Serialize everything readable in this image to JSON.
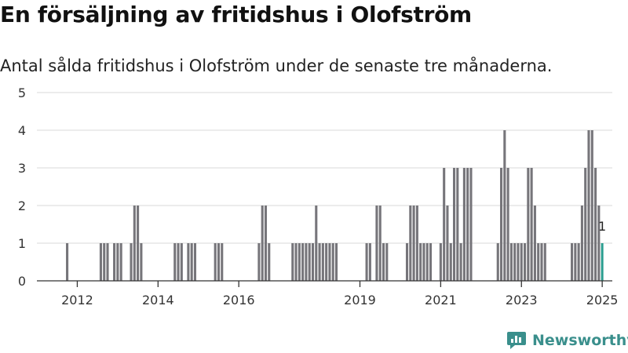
{
  "title": "En försäljning av fritidshus i Olofström",
  "subtitle": "Antal sålda fritidshus i Olofström under de senaste tre månaderna.",
  "brand": {
    "name": "Newsworthy",
    "icon": "newsworthy-logo-icon"
  },
  "colors": {
    "bar": "#76757a",
    "highlight": "#2a9d8f",
    "grid": "#d9d9d9",
    "axis": "#333333"
  },
  "chart_data": {
    "type": "bar",
    "title": "En försäljning av fritidshus i Olofström",
    "subtitle": "Antal sålda fritidshus i Olofström under de senaste tre månaderna.",
    "xlabel": "",
    "ylabel": "",
    "ylim": [
      0,
      5
    ],
    "yticks": [
      0,
      1,
      2,
      3,
      4,
      5
    ],
    "xlim": [
      "2011-01",
      "2025-04"
    ],
    "xticks": [
      "2012",
      "2014",
      "2016",
      "2019",
      "2021",
      "2023",
      "2025"
    ],
    "grid": true,
    "legend": "none",
    "highlight": {
      "x": "2025-01",
      "value": 1,
      "label": "1"
    },
    "series": [
      {
        "x": [
          "2011-10",
          "2012-08",
          "2012-09",
          "2012-10",
          "2012-12",
          "2013-01",
          "2013-02",
          "2013-05",
          "2013-06",
          "2013-07",
          "2013-08",
          "2014-06",
          "2014-07",
          "2014-08",
          "2014-10",
          "2014-11",
          "2014-12",
          "2015-06",
          "2015-07",
          "2015-08",
          "2016-07",
          "2016-08",
          "2016-09",
          "2016-10",
          "2017-05",
          "2017-06",
          "2017-07",
          "2017-08",
          "2017-09",
          "2017-10",
          "2017-11",
          "2017-12",
          "2018-01",
          "2018-02",
          "2018-03",
          "2018-04",
          "2018-05",
          "2018-06",
          "2019-03",
          "2019-04",
          "2019-06",
          "2019-07",
          "2019-08",
          "2019-09",
          "2020-03",
          "2020-04",
          "2020-05",
          "2020-06",
          "2020-07",
          "2020-08",
          "2020-09",
          "2020-10",
          "2021-01",
          "2021-02",
          "2021-03",
          "2021-04",
          "2021-05",
          "2021-06",
          "2021-07",
          "2021-08",
          "2021-09",
          "2021-10",
          "2022-06",
          "2022-07",
          "2022-08",
          "2022-09",
          "2022-10",
          "2022-11",
          "2022-12",
          "2023-01",
          "2023-02",
          "2023-03",
          "2023-04",
          "2023-05",
          "2023-06",
          "2023-07",
          "2023-08",
          "2024-04",
          "2024-05",
          "2024-06",
          "2024-07",
          "2024-08",
          "2024-09",
          "2024-10",
          "2024-11",
          "2024-12",
          "2025-01"
        ],
        "values": [
          1,
          1,
          1,
          1,
          1,
          1,
          1,
          1,
          2,
          2,
          1,
          1,
          1,
          1,
          1,
          1,
          1,
          1,
          1,
          1,
          1,
          2,
          2,
          1,
          1,
          1,
          1,
          1,
          1,
          1,
          1,
          2,
          1,
          1,
          1,
          1,
          1,
          1,
          1,
          1,
          2,
          2,
          1,
          1,
          1,
          2,
          2,
          2,
          1,
          1,
          1,
          1,
          1,
          3,
          2,
          1,
          3,
          3,
          1,
          3,
          3,
          3,
          1,
          3,
          4,
          3,
          1,
          1,
          1,
          1,
          1,
          3,
          3,
          2,
          1,
          1,
          1,
          1,
          1,
          1,
          2,
          3,
          4,
          4,
          3,
          2,
          1
        ]
      }
    ]
  }
}
